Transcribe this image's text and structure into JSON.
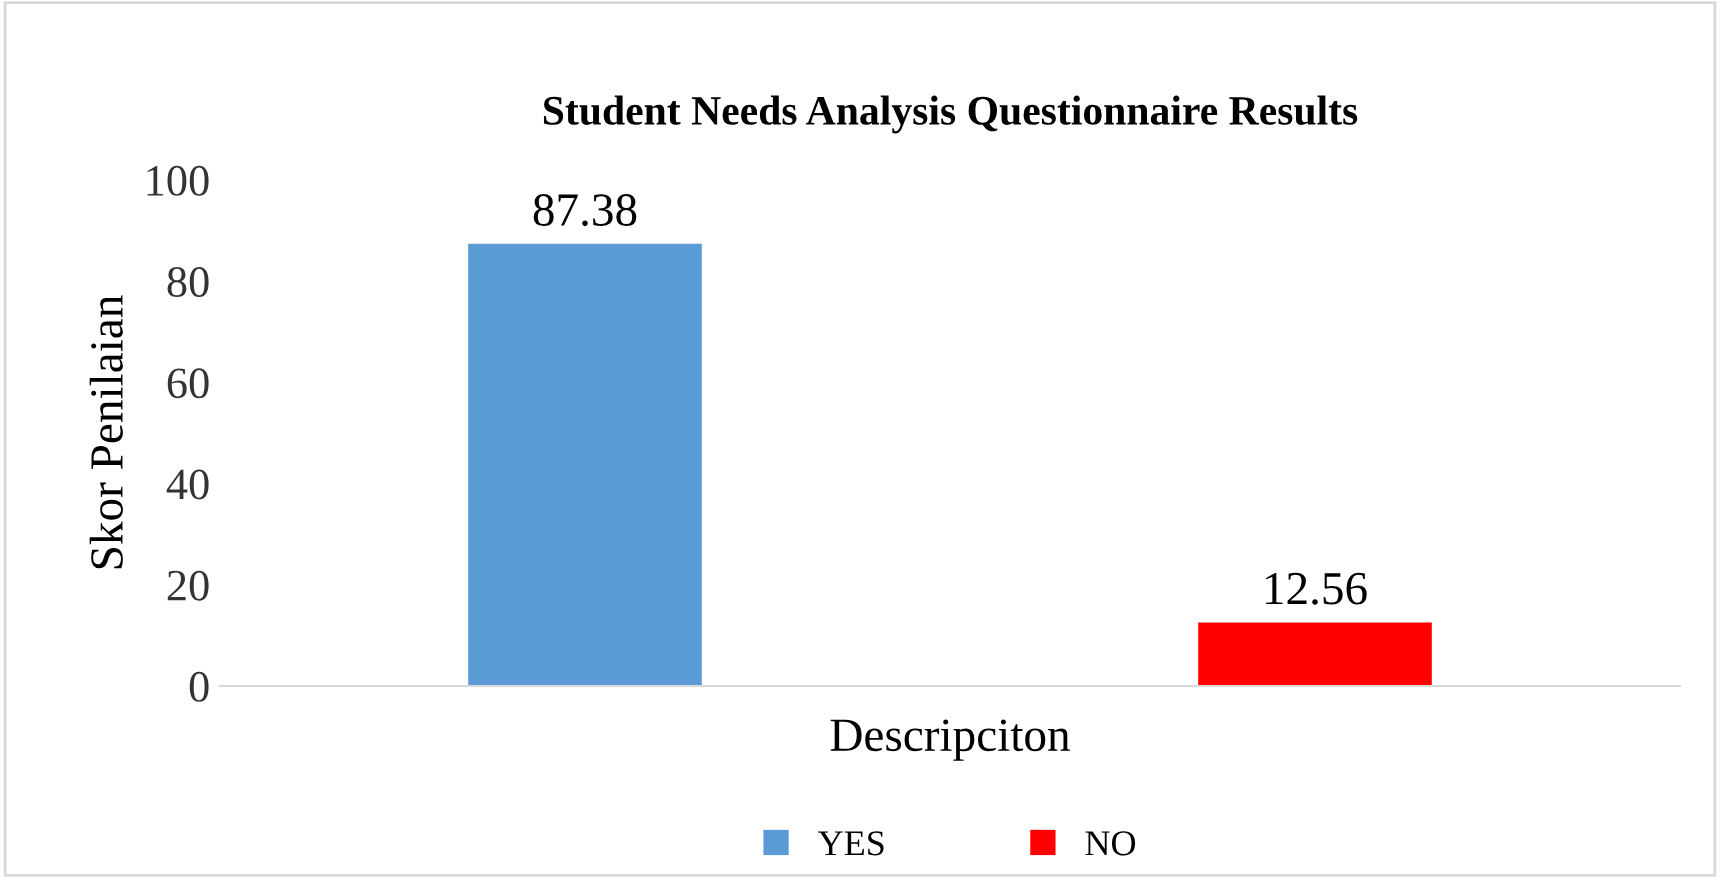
{
  "chart_data": {
    "type": "bar",
    "title": "Student Needs Analysis Questionnaire Results",
    "xlabel": "Descripciton",
    "ylabel": "Skor Penilaian",
    "categories": [
      null
    ],
    "series": [
      {
        "name": "YES",
        "color": "#5b9bd5",
        "values": [
          87.38
        ]
      },
      {
        "name": "NO",
        "color": "#ff0000",
        "values": [
          12.56
        ]
      }
    ],
    "ylim": [
      0,
      100
    ],
    "yticks": [
      0,
      20,
      40,
      60,
      80,
      100
    ],
    "grid": false,
    "legend": "bottom",
    "data_labels": true
  }
}
